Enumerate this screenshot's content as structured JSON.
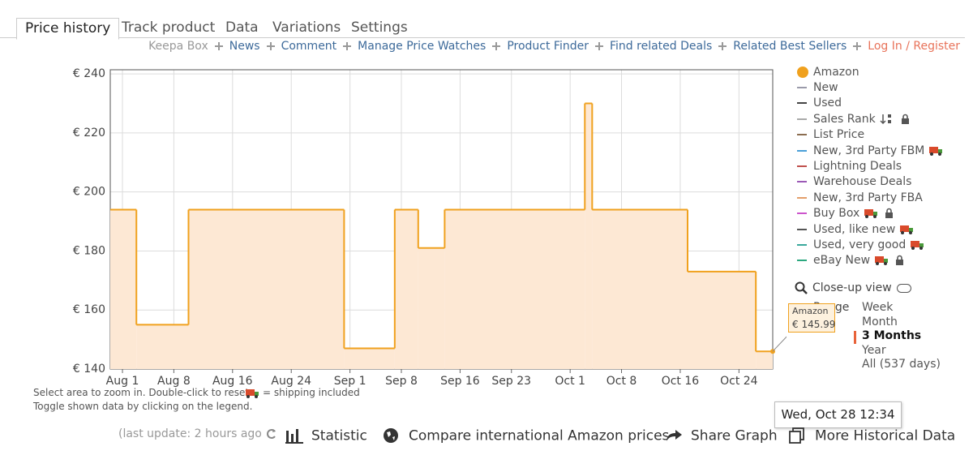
{
  "tabs": [
    "Price history",
    "Track product",
    "Data",
    "Variations",
    "Settings"
  ],
  "links": [
    "Keepa Box",
    "News",
    "Comment",
    "Manage Price Watches",
    "Product Finder",
    "Find related Deals",
    "Related Best Sellers",
    "Log In / Register"
  ],
  "chart_data": {
    "type": "line",
    "step": true,
    "x": [
      -1.66,
      1.9,
      9,
      30.2,
      37.1,
      40.3,
      43.9,
      63,
      64,
      77,
      86.3,
      88.6
    ],
    "xlim": [
      -1.66,
      88.6
    ],
    "xticks": [
      {
        "value": 0,
        "label": "Aug 1"
      },
      {
        "value": 7,
        "label": "Aug 8"
      },
      {
        "value": 15,
        "label": "Aug 16"
      },
      {
        "value": 23,
        "label": "Aug 24"
      },
      {
        "value": 31,
        "label": "Sep 1"
      },
      {
        "value": 38,
        "label": "Sep 8"
      },
      {
        "value": 46,
        "label": "Sep 16"
      },
      {
        "value": 53,
        "label": "Sep 23"
      },
      {
        "value": 61,
        "label": "Oct 1"
      },
      {
        "value": 68,
        "label": "Oct 8"
      },
      {
        "value": 76,
        "label": "Oct 16"
      },
      {
        "value": 84,
        "label": "Oct 24"
      }
    ],
    "ylim": [
      140,
      241.4
    ],
    "yticks": [
      {
        "value": 140,
        "label": "€ 140"
      },
      {
        "value": 160,
        "label": "€ 160"
      },
      {
        "value": 180,
        "label": "€ 180"
      },
      {
        "value": 200,
        "label": "€ 200"
      },
      {
        "value": 220,
        "label": "€ 220"
      },
      {
        "value": 240,
        "label": "€ 240"
      }
    ],
    "grid": true,
    "series": [
      {
        "name": "Amazon",
        "color": "#f0a11e",
        "fill": "#fde8d4",
        "values": [
          194,
          155,
          194,
          147,
          194,
          181,
          194,
          230,
          194,
          173,
          145.99,
          145.99
        ]
      }
    ]
  },
  "legend": [
    {
      "label": "New",
      "color": "#9a9aaa"
    },
    {
      "label": "Used",
      "color": "#444444"
    },
    {
      "label": "Sales Rank",
      "color": "#a9aaa9",
      "icons": [
        "sort",
        "lock"
      ]
    },
    {
      "label": "List Price",
      "color": "#8b6d50"
    },
    {
      "label": "New, 3rd Party FBM",
      "color": "#4a9fd8",
      "icons": [
        "truck"
      ]
    },
    {
      "label": "Lightning Deals",
      "color": "#c0504d"
    },
    {
      "label": "Warehouse Deals",
      "color": "#9b59b6"
    },
    {
      "label": "New, 3rd Party FBA",
      "color": "#e39e6a"
    },
    {
      "label": "Buy Box",
      "color": "#cc55cc",
      "icons": [
        "truck",
        "lock"
      ]
    },
    {
      "label": "Used, like new",
      "color": "#555555",
      "icons": [
        "truck"
      ]
    },
    {
      "label": "Used, very good",
      "color": "#3aa89c",
      "icons": [
        "truck"
      ]
    },
    {
      "label": "eBay New",
      "color": "#2ca87f",
      "icons": [
        "truck",
        "lock"
      ]
    }
  ],
  "notes": [
    "Select area to zoom in. Double-click to reset.",
    "= shipping included",
    "Toggle shown data by clicking on the legend."
  ],
  "close_up": "Close-up view",
  "range": {
    "label": "Range",
    "options": [
      "Week",
      "Month",
      "3 Months",
      "Year",
      "All (537 days)"
    ],
    "selected": 2
  },
  "tooltip": {
    "series": "Amazon",
    "price": "€ 145.99",
    "time": "Wed, Oct 28 12:34"
  },
  "toolbar": {
    "last_update": "(last update: 2 hours ago",
    "items": [
      "Statistic",
      "Compare international Amazon prices",
      "Share Graph",
      "More Historical Data"
    ]
  }
}
